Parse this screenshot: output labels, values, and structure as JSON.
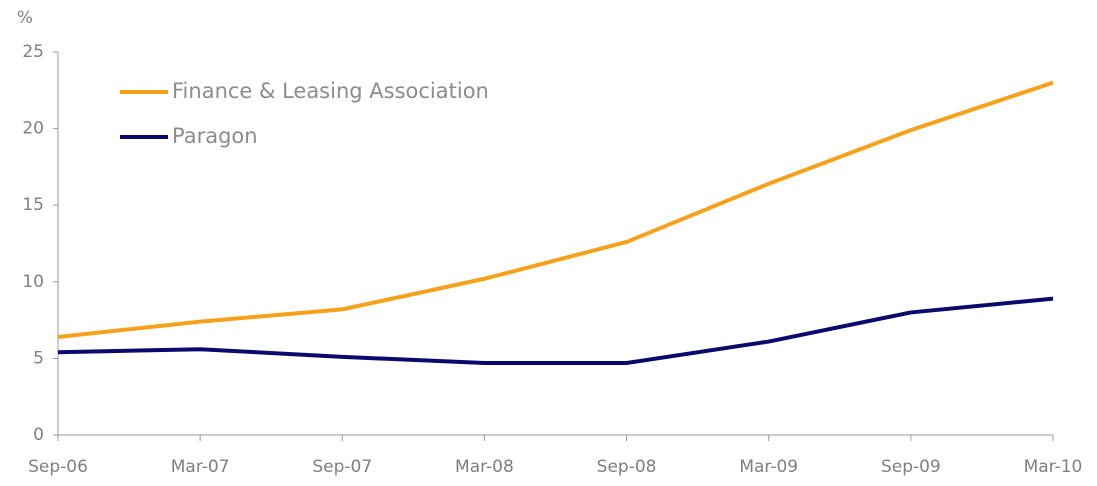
{
  "chart_data": {
    "type": "line",
    "y_label": "%",
    "categories": [
      "Sep-06",
      "Mar-07",
      "Sep-07",
      "Mar-08",
      "Sep-08",
      "Mar-09",
      "Sep-09",
      "Mar-10"
    ],
    "series": [
      {
        "name": "Finance & Leasing Association",
        "color": "#f7a11a",
        "values": [
          6.4,
          7.4,
          8.2,
          10.2,
          12.6,
          16.4,
          19.9,
          23.0
        ]
      },
      {
        "name": "Paragon",
        "color": "#0a0a6e",
        "values": [
          5.4,
          5.6,
          5.1,
          4.7,
          4.7,
          6.1,
          8.0,
          8.9
        ]
      }
    ],
    "ylim": [
      0,
      25
    ],
    "yticks": [
      0,
      5,
      10,
      15,
      20,
      25
    ],
    "legend": "upper left"
  }
}
